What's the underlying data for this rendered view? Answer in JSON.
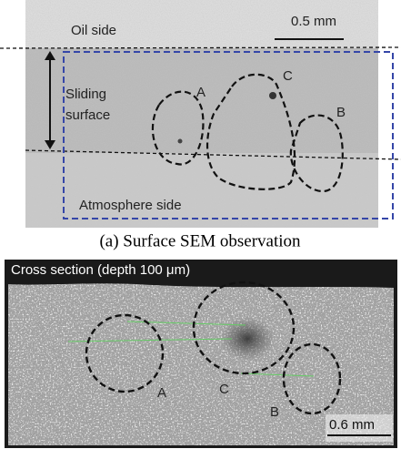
{
  "surface_image": {
    "oil_side": "Oil side",
    "scale_bar": "0.5 mm",
    "sliding_surface": "Sliding surface",
    "labels": [
      "A",
      "C",
      "B"
    ],
    "atmosphere_side": "Atmosphere side"
  },
  "caption": "(a) Surface SEM observation",
  "cross_section_image": {
    "title": "Cross section (depth 100 μm)",
    "labels": [
      "A",
      "C",
      "B"
    ],
    "scale_bar": "0.6 mm"
  }
}
